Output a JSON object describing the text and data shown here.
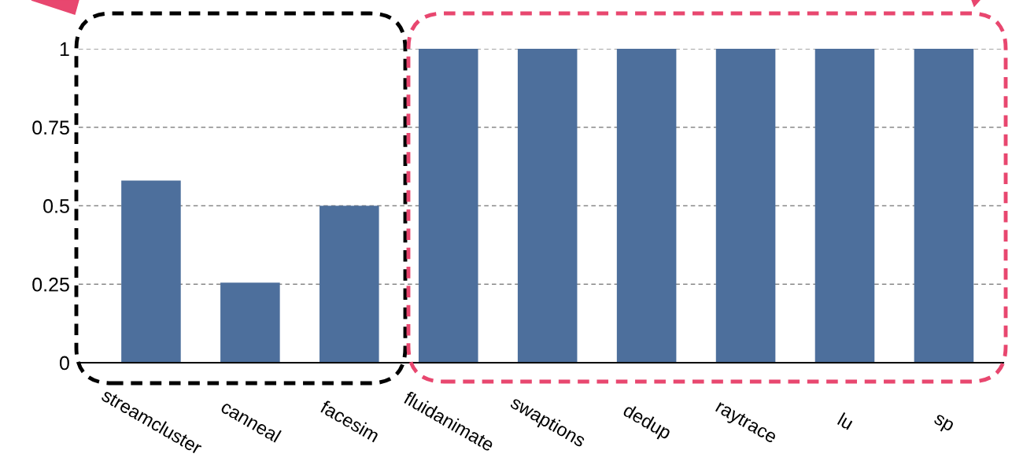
{
  "chart_data": {
    "type": "bar",
    "categories": [
      "streamcluster",
      "canneal",
      "facesim",
      "fluidanimate",
      "swaptions",
      "dedup",
      "raytrace",
      "lu",
      "sp"
    ],
    "values": [
      0.58,
      0.255,
      0.5,
      1,
      1,
      1,
      1,
      1,
      1
    ],
    "color": "#4d6f9c",
    "ylim": [
      0,
      1
    ],
    "yticks": [
      0,
      0.25,
      0.5,
      0.75,
      1
    ],
    "grid": "y"
  }
}
